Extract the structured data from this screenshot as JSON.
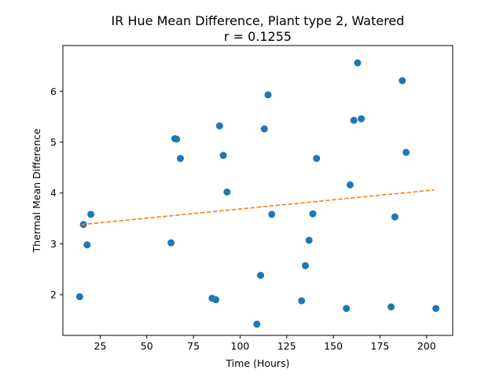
{
  "chart_data": {
    "type": "scatter",
    "title": "IR Hue Mean Difference, Plant type 2, Watered",
    "subtitle": "r = 0.1255",
    "xlabel": "Time (Hours)",
    "ylabel": "Thermal Mean Difference",
    "xlim": [
      5,
      214
    ],
    "ylim": [
      1.2,
      6.9
    ],
    "xticks": [
      25,
      50,
      75,
      100,
      125,
      150,
      175,
      200
    ],
    "yticks": [
      2,
      3,
      4,
      5,
      6
    ],
    "grid": false,
    "colors": {
      "points": "#1f77b4",
      "trend": "#ff7f0e"
    },
    "points": [
      [
        14,
        1.96
      ],
      [
        16,
        3.38
      ],
      [
        18,
        2.98
      ],
      [
        20,
        3.58
      ],
      [
        63,
        3.02
      ],
      [
        65,
        5.07
      ],
      [
        66,
        5.06
      ],
      [
        68,
        4.68
      ],
      [
        85,
        1.93
      ],
      [
        87,
        1.9
      ],
      [
        89,
        5.32
      ],
      [
        91,
        4.74
      ],
      [
        93,
        4.02
      ],
      [
        109,
        1.42
      ],
      [
        111,
        2.38
      ],
      [
        113,
        5.26
      ],
      [
        115,
        5.93
      ],
      [
        117,
        3.58
      ],
      [
        133,
        1.88
      ],
      [
        135,
        2.57
      ],
      [
        137,
        3.07
      ],
      [
        139,
        3.59
      ],
      [
        141,
        4.68
      ],
      [
        157,
        1.73
      ],
      [
        159,
        4.16
      ],
      [
        161,
        5.43
      ],
      [
        163,
        6.56
      ],
      [
        165,
        5.46
      ],
      [
        181,
        1.76
      ],
      [
        183,
        3.53
      ],
      [
        187,
        6.21
      ],
      [
        189,
        4.8
      ],
      [
        205,
        1.73
      ]
    ],
    "trendline": {
      "x": [
        15,
        204
      ],
      "y": [
        3.38,
        4.06
      ]
    }
  }
}
